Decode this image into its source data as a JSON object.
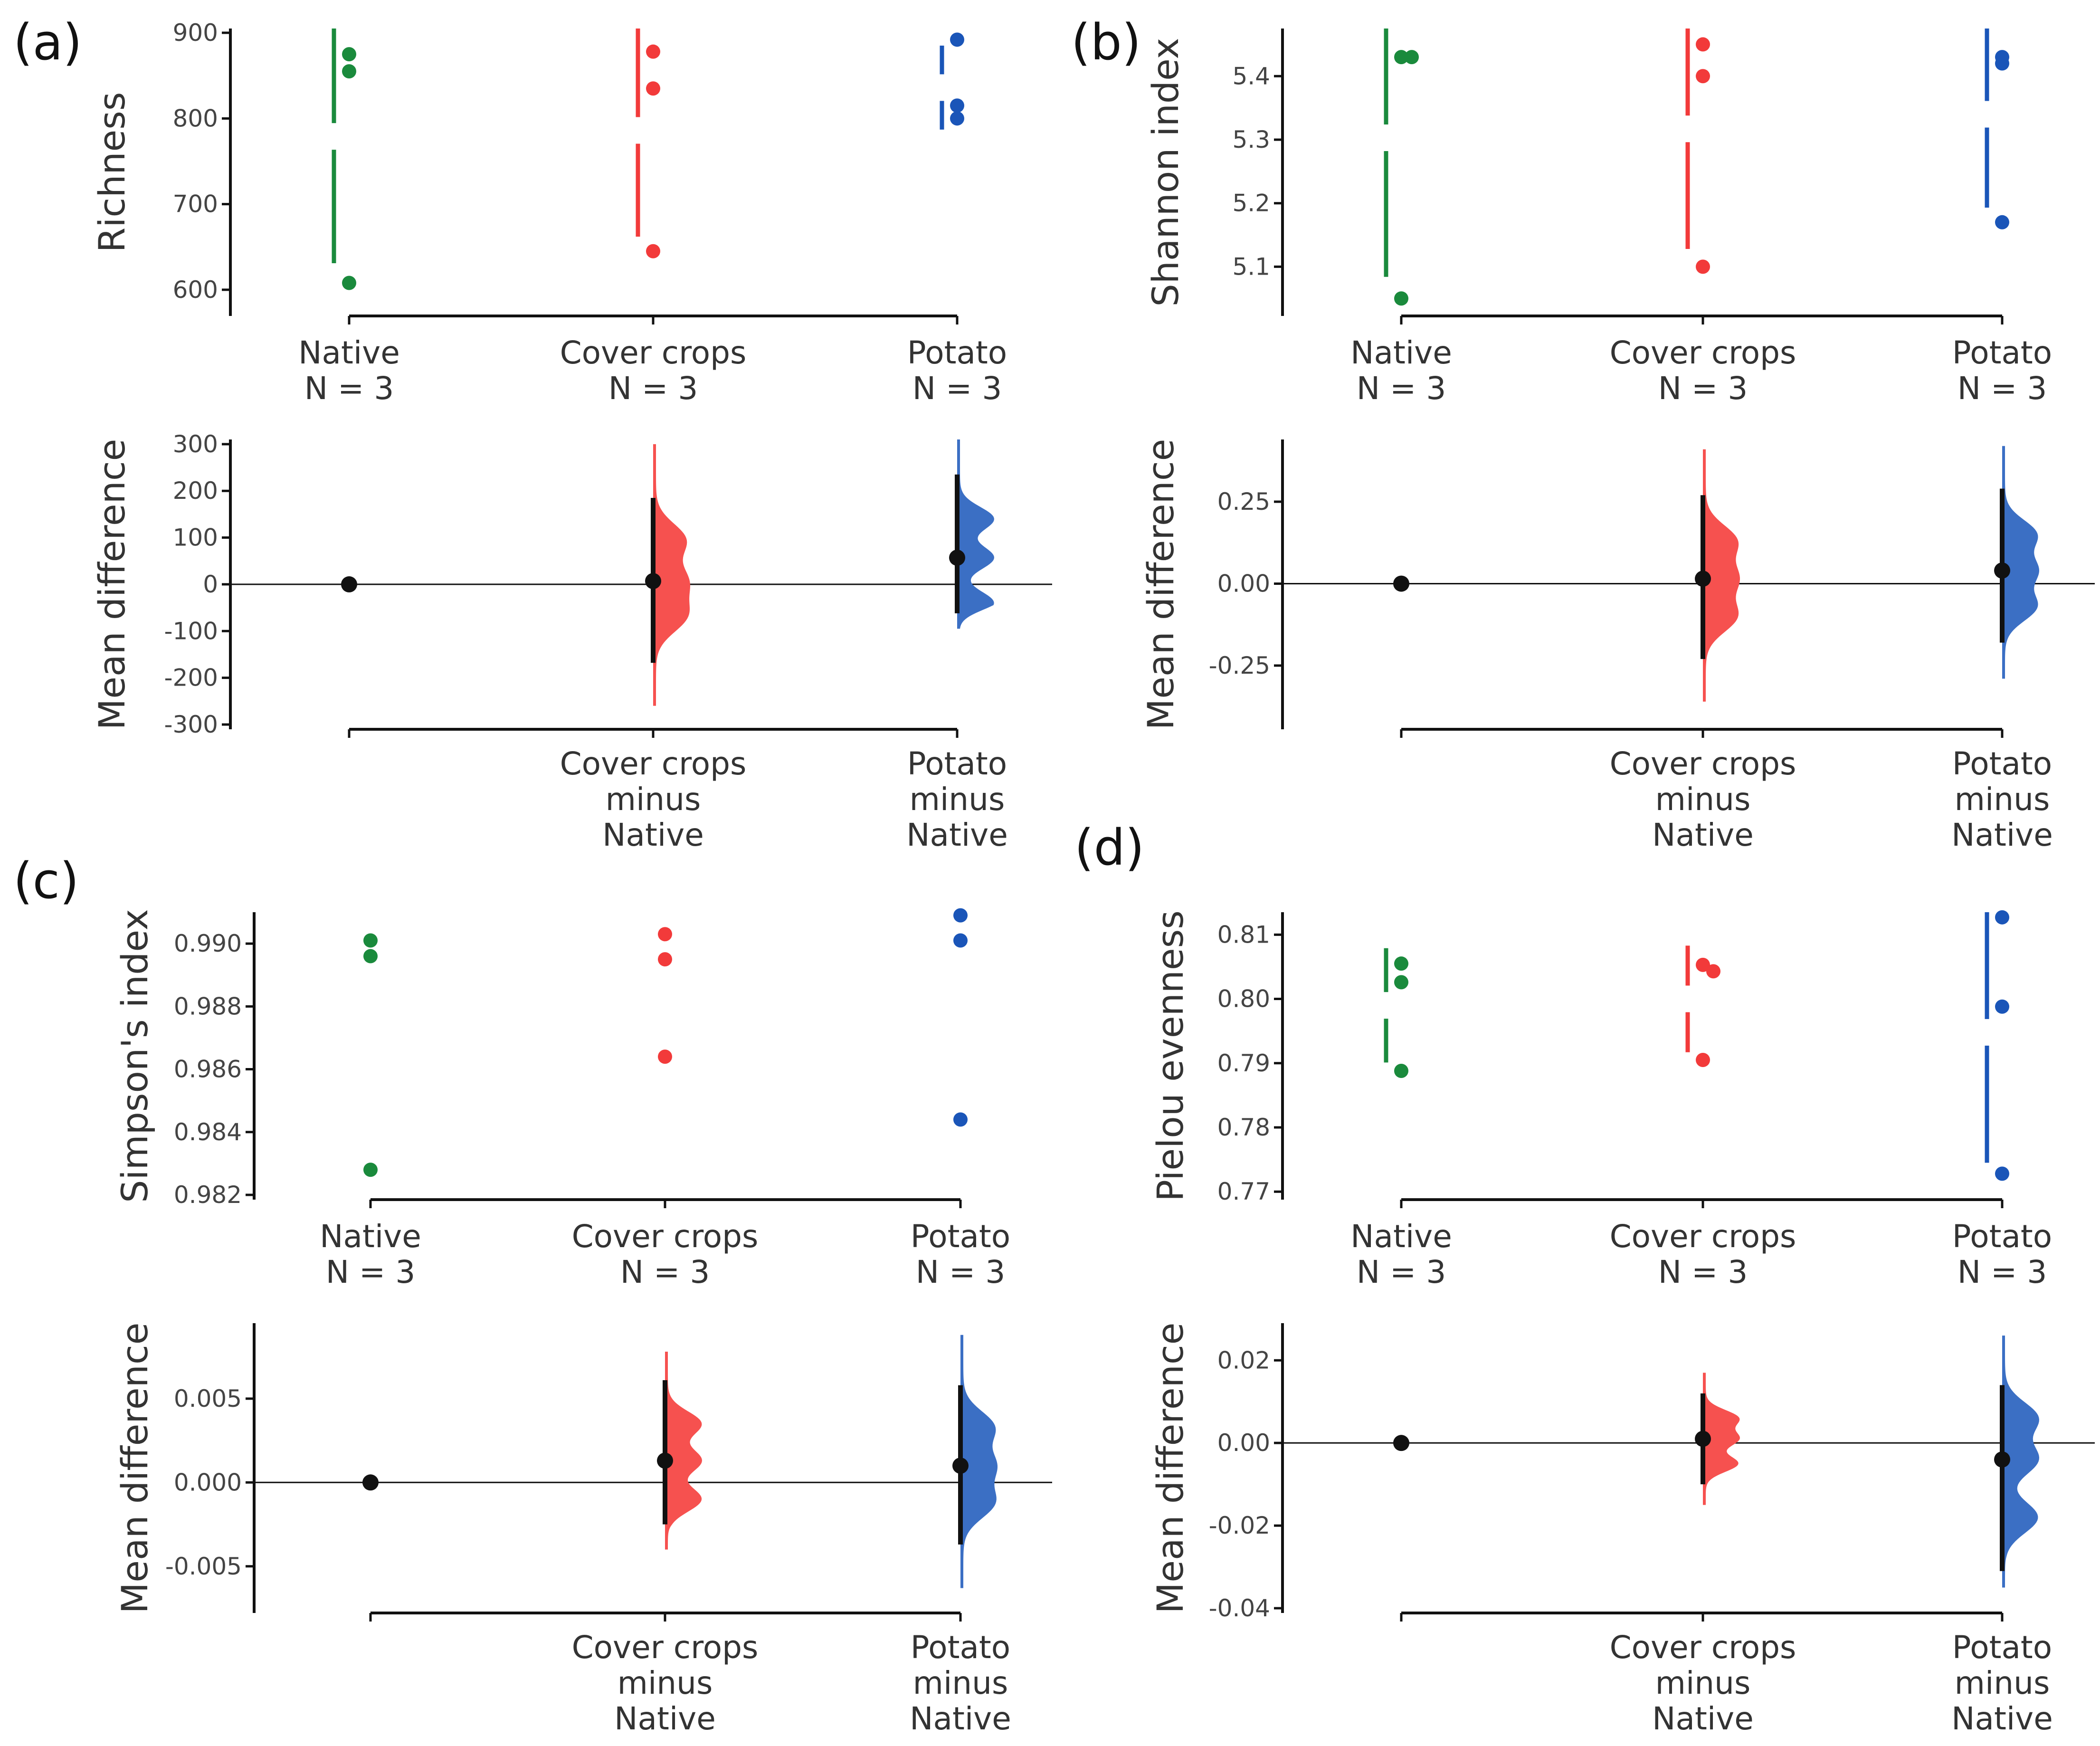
{
  "colors": {
    "native": "#1a8a3c",
    "cover": "#f23a3a",
    "potato": "#1a55b8",
    "cover_fill": "#f6514f",
    "potato_fill": "#3b6fc4",
    "axis": "#111111"
  },
  "chart_data": [
    {
      "panel": "(a)",
      "type": "scatter",
      "title": "",
      "ylabel": "Richness",
      "ylim": [
        575,
        905
      ],
      "yticks": [
        "600",
        "700",
        "800",
        "900"
      ],
      "yticks_values": [
        600,
        700,
        800,
        900
      ],
      "categories": [
        "Native",
        "Cover crops",
        "Potato"
      ],
      "category_counts": [
        "N = 3",
        "N = 3",
        "N = 3"
      ],
      "series": [
        {
          "name": "Native",
          "values": [
            875,
            855,
            608
          ],
          "mean": 779,
          "sd": 148
        },
        {
          "name": "Cover crops",
          "values": [
            878,
            835,
            645
          ],
          "mean": 786,
          "sd": 124
        },
        {
          "name": "Potato",
          "values": [
            892,
            815,
            800
          ],
          "mean": 836,
          "sd": 49
        }
      ],
      "diff": {
        "ylabel": "Mean difference",
        "ylim": [
          -300,
          310
        ],
        "yticks": [
          "-300",
          "-200",
          "-100",
          "0",
          "100",
          "200",
          "300"
        ],
        "yticks_values": [
          -300,
          -200,
          -100,
          0,
          100,
          200,
          300
        ],
        "labels": [
          {
            "l1": "Cover crops",
            "l2": "minus",
            "l3": "Native"
          },
          {
            "l1": "Potato",
            "l2": "minus",
            "l3": "Native"
          }
        ],
        "effects": [
          {
            "name": "Cover crops minus Native",
            "mean": 7,
            "ci": [
              -168,
              185
            ],
            "modes": [
              -68,
              7,
              95
            ],
            "range": [
              -260,
              300
            ]
          },
          {
            "name": "Potato minus Native",
            "mean": 57,
            "ci": [
              -62,
              235
            ],
            "modes": [
              -40,
              57,
              140
            ],
            "range": [
              -95,
              310
            ]
          }
        ]
      }
    },
    {
      "panel": "(b)",
      "type": "scatter",
      "title": "",
      "ylabel": "Shannon index",
      "ylim": [
        5.03,
        5.475
      ],
      "yticks": [
        "5.1",
        "5.2",
        "5.3",
        "5.4"
      ],
      "yticks_values": [
        5.1,
        5.2,
        5.3,
        5.4
      ],
      "categories": [
        "Native",
        "Cover crops",
        "Potato"
      ],
      "category_counts": [
        "N = 3",
        "N = 3",
        "N = 3"
      ],
      "series": [
        {
          "name": "Native",
          "values": [
            5.43,
            5.43,
            5.05
          ],
          "mean": 5.303,
          "sd": 0.219
        },
        {
          "name": "Cover crops",
          "values": [
            5.45,
            5.4,
            5.1
          ],
          "mean": 5.317,
          "sd": 0.189
        },
        {
          "name": "Potato",
          "values": [
            5.43,
            5.42,
            5.17
          ],
          "mean": 5.34,
          "sd": 0.147
        }
      ],
      "diff": {
        "ylabel": "Mean difference",
        "ylim": [
          -0.43,
          0.44
        ],
        "yticks": [
          "-0.25",
          "0.00",
          "0.25"
        ],
        "yticks_values": [
          -0.25,
          0.0,
          0.25
        ],
        "labels": [
          {
            "l1": "Cover crops",
            "l2": "minus",
            "l3": "Native"
          },
          {
            "l1": "Potato",
            "l2": "minus",
            "l3": "Native"
          }
        ],
        "effects": [
          {
            "name": "Cover crops minus Native",
            "mean": 0.015,
            "ci": [
              -0.23,
              0.27
            ],
            "modes": [
              -0.1,
              0.015,
              0.13
            ],
            "range": [
              -0.36,
              0.41
            ]
          },
          {
            "name": "Potato minus Native",
            "mean": 0.04,
            "ci": [
              -0.18,
              0.29
            ],
            "modes": [
              -0.07,
              0.04,
              0.15
            ],
            "range": [
              -0.29,
              0.42
            ]
          }
        ]
      }
    },
    {
      "panel": "(c)",
      "type": "scatter",
      "title": "",
      "ylabel": "Simpson's index",
      "ylim": [
        0.982,
        0.991
      ],
      "yticks": [
        "0.982",
        "0.984",
        "0.986",
        "0.988",
        "0.990"
      ],
      "yticks_values": [
        0.982,
        0.984,
        0.986,
        0.988,
        0.99
      ],
      "categories": [
        "Native",
        "Cover crops",
        "Potato"
      ],
      "category_counts": [
        "N = 3",
        "N = 3",
        "N = 3"
      ],
      "series": [
        {
          "name": "Native",
          "values": [
            0.9901,
            0.9896,
            0.9828
          ]
        },
        {
          "name": "Cover crops",
          "values": [
            0.9903,
            0.9895,
            0.9864
          ]
        },
        {
          "name": "Potato",
          "values": [
            0.9909,
            0.9901,
            0.9844
          ]
        }
      ],
      "diff": {
        "ylabel": "Mean difference",
        "ylim": [
          -0.0075,
          0.0095
        ],
        "yticks": [
          "-0.005",
          "0.000",
          "0.005"
        ],
        "yticks_values": [
          -0.005,
          0.0,
          0.005
        ],
        "labels": [
          {
            "l1": "Cover crops",
            "l2": "minus",
            "l3": "Native"
          },
          {
            "l1": "Potato",
            "l2": "minus",
            "l3": "Native"
          }
        ],
        "effects": [
          {
            "name": "Cover crops minus Native",
            "mean": 0.0013,
            "ci": [
              -0.0025,
              0.0061
            ],
            "modes": [
              -0.001,
              0.0013,
              0.0035
            ],
            "range": [
              -0.004,
              0.0078
            ]
          },
          {
            "name": "Potato minus Native",
            "mean": 0.001,
            "ci": [
              -0.0037,
              0.0058
            ],
            "modes": [
              -0.0012,
              0.001,
              0.0033
            ],
            "range": [
              -0.0063,
              0.0088
            ]
          }
        ]
      }
    },
    {
      "panel": "(d)",
      "type": "scatter",
      "title": "",
      "ylabel": "Pielou evenness",
      "ylim": [
        0.7695,
        0.8135
      ],
      "yticks": [
        "0.77",
        "0.78",
        "0.79",
        "0.80",
        "0.81"
      ],
      "yticks_values": [
        0.77,
        0.78,
        0.79,
        0.8,
        0.81
      ],
      "categories": [
        "Native",
        "Cover crops",
        "Potato"
      ],
      "category_counts": [
        "N = 3",
        "N = 3",
        "N = 3"
      ],
      "series": [
        {
          "name": "Native",
          "values": [
            0.8055,
            0.8026,
            0.7888
          ],
          "mean": 0.799,
          "sd": 0.0089
        },
        {
          "name": "Cover crops",
          "values": [
            0.8053,
            0.8043,
            0.7905
          ],
          "mean": 0.8,
          "sd": 0.0083
        },
        {
          "name": "Potato",
          "values": [
            0.8127,
            0.7988,
            0.7728
          ],
          "mean": 0.7948,
          "sd": 0.0203
        }
      ],
      "diff": {
        "ylabel": "Mean difference",
        "ylim": [
          -0.04,
          0.029
        ],
        "yticks": [
          "-0.04",
          "-0.02",
          "0.00",
          "0.02"
        ],
        "yticks_values": [
          -0.04,
          -0.02,
          0.0,
          0.02
        ],
        "labels": [
          {
            "l1": "Cover crops",
            "l2": "minus",
            "l3": "Native"
          },
          {
            "l1": "Potato",
            "l2": "minus",
            "l3": "Native"
          }
        ],
        "effects": [
          {
            "name": "Cover crops minus Native",
            "mean": 0.001,
            "ci": [
              -0.01,
              0.012
            ],
            "modes": [
              -0.005,
              0.001,
              0.006
            ],
            "range": [
              -0.015,
              0.017
            ]
          },
          {
            "name": "Potato minus Native",
            "mean": -0.004,
            "ci": [
              -0.031,
              0.014
            ],
            "modes": [
              -0.018,
              -0.004,
              0.006
            ],
            "range": [
              -0.035,
              0.026
            ]
          }
        ]
      }
    }
  ]
}
